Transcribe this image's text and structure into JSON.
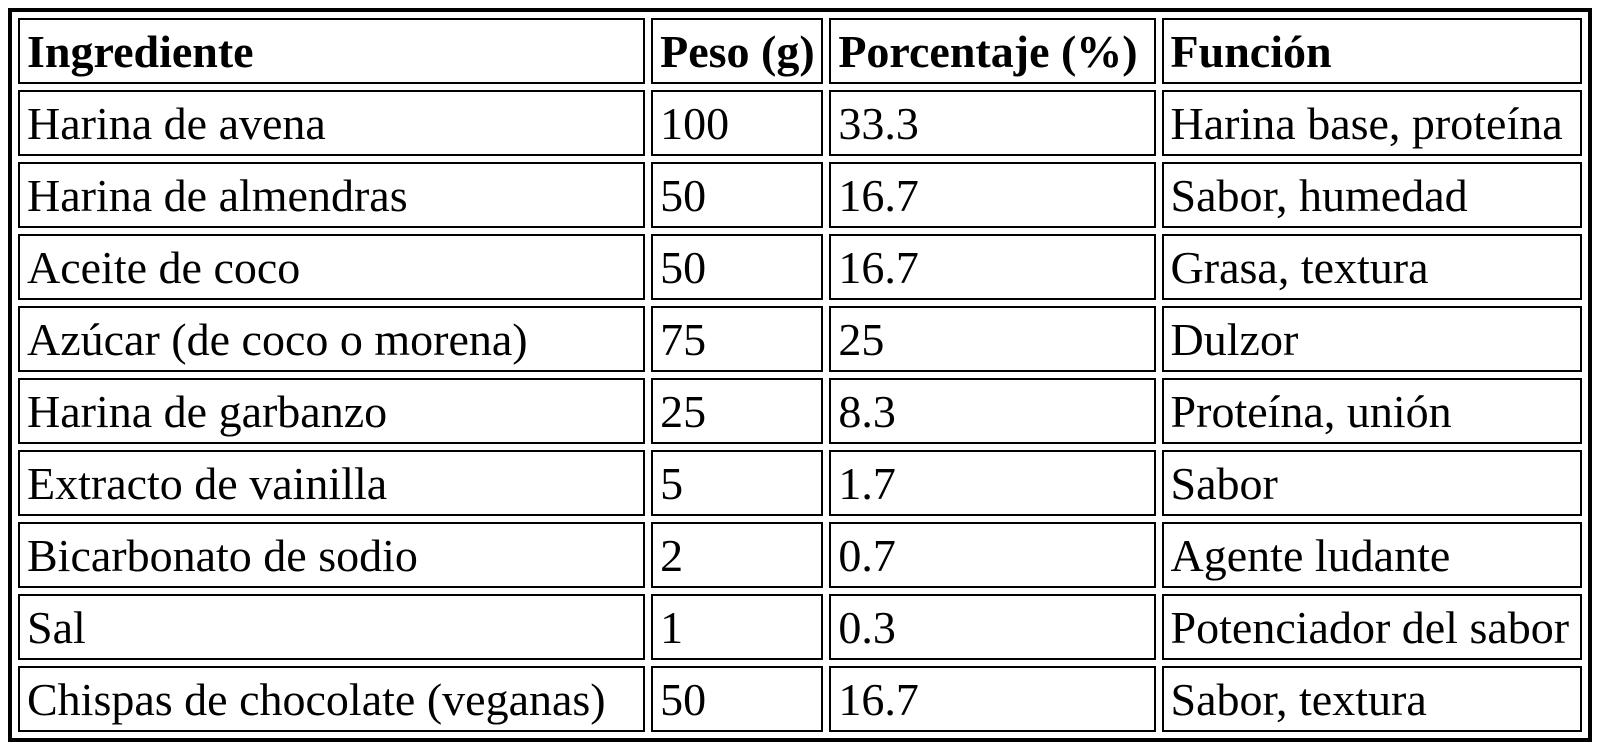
{
  "table": {
    "headers": [
      "Ingrediente",
      "Peso (g)",
      "Porcentaje (%)",
      "Función"
    ],
    "rows": [
      [
        "Harina de avena",
        "100",
        "33.3",
        "Harina base, proteína"
      ],
      [
        "Harina de almendras",
        "50",
        "16.7",
        "Sabor, humedad"
      ],
      [
        "Aceite de coco",
        "50",
        "16.7",
        "Grasa, textura"
      ],
      [
        "Azúcar (de coco o morena)",
        "75",
        "25",
        "Dulzor"
      ],
      [
        "Harina de garbanzo",
        "25",
        "8.3",
        "Proteína, unión"
      ],
      [
        "Extracto de vainilla",
        "5",
        "1.7",
        "Sabor"
      ],
      [
        "Bicarbonato de sodio",
        "2",
        "0.7",
        "Agente ludante"
      ],
      [
        "Sal",
        "1",
        "0.3",
        "Potenciador del sabor"
      ],
      [
        "Chispas de chocolate (veganas)",
        "50",
        "16.7",
        "Sabor, textura"
      ]
    ],
    "colors": {
      "border": "#000000",
      "text": "#000000",
      "background": "#ffffff"
    }
  }
}
